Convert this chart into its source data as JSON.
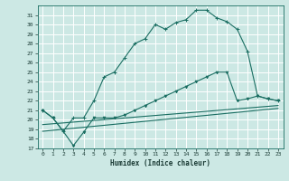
{
  "bg_color": "#cce8e4",
  "grid_color": "#ffffff",
  "line_color": "#1a6e62",
  "xlabel": "Humidex (Indice chaleur)",
  "ylim": [
    17,
    32
  ],
  "xlim": [
    -0.5,
    23.5
  ],
  "yticks": [
    17,
    18,
    19,
    20,
    21,
    22,
    23,
    24,
    25,
    26,
    27,
    28,
    29,
    30,
    31
  ],
  "xticks": [
    0,
    1,
    2,
    3,
    4,
    5,
    6,
    7,
    8,
    9,
    10,
    11,
    12,
    13,
    14,
    15,
    16,
    17,
    18,
    19,
    20,
    21,
    22,
    23
  ],
  "curve1_x": [
    0,
    1,
    2,
    3,
    4,
    5,
    6,
    7,
    8,
    9,
    10,
    11,
    12,
    13,
    14,
    15,
    16,
    17,
    18,
    19,
    20,
    21,
    22,
    23
  ],
  "curve1_y": [
    21.0,
    20.2,
    18.8,
    20.2,
    20.2,
    22.0,
    24.5,
    25.0,
    26.5,
    28.0,
    28.5,
    30.0,
    29.5,
    30.2,
    30.5,
    31.5,
    31.5,
    30.7,
    30.3,
    29.5,
    27.2,
    22.5,
    22.2,
    22.0
  ],
  "curve2_x": [
    0,
    1,
    2,
    3,
    4,
    5,
    6,
    7,
    8,
    9,
    10,
    11,
    12,
    13,
    14,
    15,
    16,
    17,
    18,
    19,
    20,
    21,
    22,
    23
  ],
  "curve2_y": [
    21.0,
    20.2,
    18.8,
    17.3,
    18.7,
    20.2,
    20.2,
    20.2,
    20.5,
    21.0,
    21.5,
    22.0,
    22.5,
    23.0,
    23.5,
    24.0,
    24.5,
    25.0,
    25.0,
    22.0,
    22.2,
    22.5,
    22.2,
    22.0
  ],
  "curve3_x": [
    0,
    23
  ],
  "curve3_y": [
    19.5,
    21.5
  ],
  "curve4_x": [
    0,
    23
  ],
  "curve4_y": [
    18.8,
    21.2
  ],
  "xlabel_fontsize": 5.5,
  "tick_fontsize": 4.5
}
